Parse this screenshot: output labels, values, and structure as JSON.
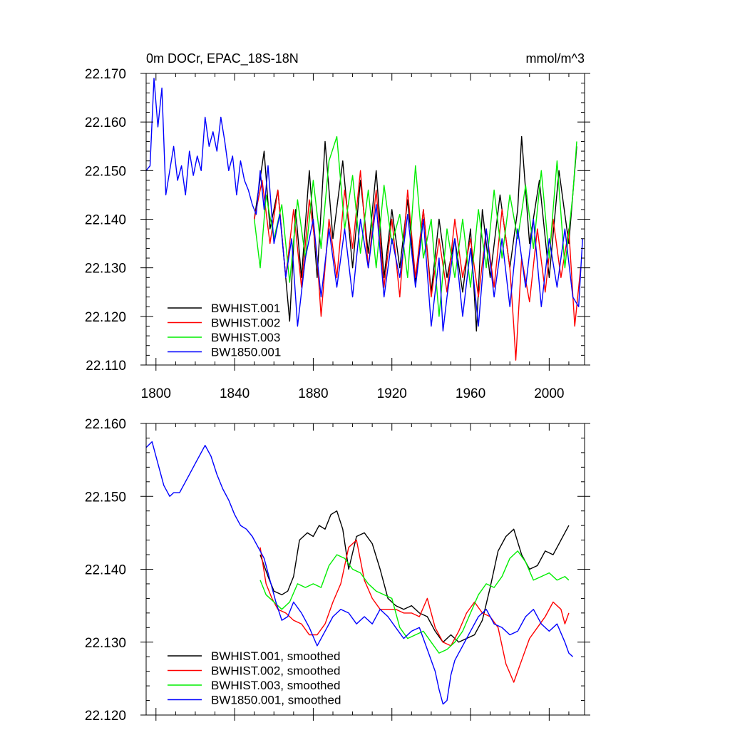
{
  "chart_data": [
    {
      "type": "line",
      "title_left": "0m DOCr, EPAC_18S-18N",
      "title_right": "mmol/m^3",
      "xlim": [
        1795,
        2018
      ],
      "ylim": [
        22.11,
        22.17
      ],
      "xticks": [
        1800,
        1840,
        1880,
        1920,
        1960,
        2000
      ],
      "xtick_labels": [
        "1800",
        "1840",
        "1880",
        "1920",
        "1960",
        "2000"
      ],
      "yticks": [
        22.11,
        22.12,
        22.13,
        22.14,
        22.15,
        22.16,
        22.17
      ],
      "ytick_labels": [
        "22.110",
        "22.120",
        "22.130",
        "22.140",
        "22.150",
        "22.160",
        "22.170"
      ],
      "legend_position": "bottom-left",
      "series": [
        {
          "name": "BWHIST.001",
          "color": "#000000",
          "x": [
            1850,
            1855,
            1858,
            1862,
            1866,
            1868,
            1871,
            1874,
            1878,
            1882,
            1886,
            1890,
            1895,
            1900,
            1904,
            1908,
            1912,
            1916,
            1920,
            1924,
            1928,
            1932,
            1936,
            1940,
            1944,
            1948,
            1952,
            1956,
            1960,
            1963,
            1966,
            1970,
            1975,
            1980,
            1984,
            1986,
            1990,
            1995,
            2000,
            2005,
            2010,
            2014
          ],
          "values": [
            22.14,
            22.154,
            22.138,
            22.146,
            22.128,
            22.119,
            22.142,
            22.128,
            22.15,
            22.128,
            22.156,
            22.136,
            22.152,
            22.13,
            22.148,
            22.133,
            22.15,
            22.128,
            22.142,
            22.13,
            22.144,
            22.127,
            22.142,
            22.125,
            22.14,
            22.128,
            22.136,
            22.125,
            22.138,
            22.117,
            22.142,
            22.128,
            22.145,
            22.13,
            22.142,
            22.157,
            22.135,
            22.148,
            22.128,
            22.15,
            22.135,
            22.155
          ]
        },
        {
          "name": "BWHIST.002",
          "color": "#ff0000",
          "x": [
            1850,
            1854,
            1858,
            1862,
            1866,
            1870,
            1874,
            1878,
            1882,
            1884,
            1888,
            1892,
            1896,
            1900,
            1904,
            1908,
            1912,
            1916,
            1920,
            1924,
            1928,
            1932,
            1936,
            1940,
            1944,
            1948,
            1952,
            1956,
            1960,
            1964,
            1968,
            1972,
            1976,
            1980,
            1982,
            1983,
            1986,
            1990,
            1994,
            1998,
            2002,
            2006,
            2010,
            2013,
            2016
          ],
          "values": [
            22.14,
            22.148,
            22.135,
            22.146,
            22.128,
            22.142,
            22.126,
            22.144,
            22.132,
            22.12,
            22.14,
            22.128,
            22.146,
            22.134,
            22.15,
            22.13,
            22.146,
            22.126,
            22.14,
            22.124,
            22.146,
            22.128,
            22.142,
            22.124,
            22.136,
            22.125,
            22.14,
            22.128,
            22.136,
            22.124,
            22.138,
            22.126,
            22.142,
            22.13,
            22.118,
            22.111,
            22.132,
            22.123,
            22.138,
            22.125,
            22.14,
            22.128,
            22.138,
            22.118,
            22.13
          ]
        },
        {
          "name": "BWHIST.003",
          "color": "#00ee00",
          "x": [
            1850,
            1853,
            1856,
            1860,
            1864,
            1868,
            1872,
            1876,
            1880,
            1884,
            1888,
            1892,
            1896,
            1900,
            1904,
            1908,
            1912,
            1916,
            1920,
            1924,
            1928,
            1932,
            1936,
            1940,
            1944,
            1948,
            1952,
            1956,
            1960,
            1964,
            1968,
            1972,
            1976,
            1980,
            1984,
            1988,
            1992,
            1996,
            2000,
            2004,
            2008,
            2012,
            2014
          ],
          "values": [
            22.14,
            22.13,
            22.145,
            22.136,
            22.143,
            22.127,
            22.144,
            22.132,
            22.148,
            22.134,
            22.152,
            22.157,
            22.138,
            22.149,
            22.133,
            22.146,
            22.13,
            22.147,
            22.135,
            22.141,
            22.128,
            22.151,
            22.132,
            22.14,
            22.12,
            22.138,
            22.128,
            22.14,
            22.126,
            22.142,
            22.13,
            22.146,
            22.132,
            22.145,
            22.136,
            22.147,
            22.134,
            22.15,
            22.132,
            22.152,
            22.13,
            22.145,
            22.156
          ]
        },
        {
          "name": "BW1850.001",
          "color": "#0000ff",
          "x": [
            1795,
            1797,
            1799,
            1801,
            1803,
            1805,
            1807,
            1809,
            1811,
            1813,
            1815,
            1817,
            1819,
            1821,
            1823,
            1825,
            1827,
            1829,
            1831,
            1833,
            1835,
            1837,
            1839,
            1841,
            1843,
            1845,
            1847,
            1849,
            1851,
            1853,
            1855,
            1857,
            1860,
            1863,
            1866,
            1869,
            1872,
            1876,
            1880,
            1884,
            1888,
            1892,
            1896,
            1900,
            1904,
            1908,
            1912,
            1916,
            1920,
            1924,
            1928,
            1932,
            1936,
            1940,
            1944,
            1946,
            1948,
            1952,
            1956,
            1960,
            1964,
            1968,
            1972,
            1976,
            1980,
            1984,
            1988,
            1992,
            1996,
            2000,
            2004,
            2008,
            2012,
            2015,
            2017
          ],
          "values": [
            22.15,
            22.151,
            22.169,
            22.159,
            22.167,
            22.145,
            22.15,
            22.155,
            22.148,
            22.151,
            22.145,
            22.154,
            22.149,
            22.153,
            22.15,
            22.161,
            22.155,
            22.158,
            22.154,
            22.161,
            22.156,
            22.15,
            22.153,
            22.145,
            22.152,
            22.148,
            22.146,
            22.143,
            22.141,
            22.15,
            22.142,
            22.151,
            22.135,
            22.141,
            22.128,
            22.136,
            22.118,
            22.132,
            22.14,
            22.124,
            22.138,
            22.126,
            22.138,
            22.124,
            22.14,
            22.13,
            22.143,
            22.124,
            22.136,
            22.128,
            22.141,
            22.126,
            22.14,
            22.118,
            22.132,
            22.117,
            22.124,
            22.136,
            22.12,
            22.134,
            22.118,
            22.138,
            22.124,
            22.136,
            22.122,
            22.138,
            22.126,
            22.14,
            22.122,
            22.136,
            22.126,
            22.138,
            22.124,
            22.122,
            22.136
          ]
        }
      ]
    },
    {
      "type": "line",
      "xlim": [
        1795,
        2018
      ],
      "ylim": [
        22.12,
        22.16
      ],
      "xticks": [
        1800,
        1840,
        1880,
        1920,
        1960,
        2000
      ],
      "yticks": [
        22.12,
        22.13,
        22.14,
        22.15,
        22.16
      ],
      "ytick_labels": [
        "22.120",
        "22.130",
        "22.140",
        "22.150",
        "22.160"
      ],
      "legend_position": "bottom-left",
      "series": [
        {
          "name": "BWHIST.001, smoothed",
          "color": "#000000",
          "x": [
            1853,
            1857,
            1860,
            1864,
            1867,
            1870,
            1873,
            1877,
            1880,
            1883,
            1886,
            1889,
            1892,
            1895,
            1898,
            1902,
            1906,
            1910,
            1914,
            1918,
            1922,
            1926,
            1930,
            1934,
            1938,
            1942,
            1946,
            1950,
            1954,
            1958,
            1962,
            1966,
            1970,
            1974,
            1978,
            1982,
            1986,
            1990,
            1994,
            1998,
            2002,
            2006,
            2010
          ],
          "values": [
            22.142,
            22.139,
            22.137,
            22.1365,
            22.137,
            22.139,
            22.144,
            22.145,
            22.1445,
            22.146,
            22.1455,
            22.1475,
            22.148,
            22.1455,
            22.14,
            22.1445,
            22.145,
            22.1435,
            22.14,
            22.136,
            22.135,
            22.1345,
            22.135,
            22.134,
            22.1335,
            22.1315,
            22.13,
            22.131,
            22.13,
            22.1305,
            22.131,
            22.133,
            22.1375,
            22.1425,
            22.1445,
            22.1455,
            22.142,
            22.14,
            22.1405,
            22.1425,
            22.142,
            22.144,
            22.146
          ]
        },
        {
          "name": "BWHIST.002, smoothed",
          "color": "#ff0000",
          "x": [
            1853,
            1856,
            1859,
            1862,
            1866,
            1870,
            1874,
            1878,
            1882,
            1886,
            1890,
            1894,
            1898,
            1902,
            1906,
            1910,
            1914,
            1918,
            1922,
            1926,
            1930,
            1934,
            1938,
            1942,
            1946,
            1950,
            1954,
            1958,
            1962,
            1966,
            1970,
            1974,
            1978,
            1982,
            1986,
            1990,
            1994,
            1998,
            2002,
            2006,
            2008,
            2010
          ],
          "values": [
            22.143,
            22.138,
            22.136,
            22.1345,
            22.134,
            22.133,
            22.1325,
            22.131,
            22.131,
            22.1325,
            22.1355,
            22.138,
            22.143,
            22.144,
            22.1385,
            22.136,
            22.1345,
            22.1345,
            22.1345,
            22.134,
            22.134,
            22.1335,
            22.136,
            22.132,
            22.13,
            22.1295,
            22.1315,
            22.134,
            22.1355,
            22.134,
            22.1335,
            22.132,
            22.127,
            22.1245,
            22.1275,
            22.1305,
            22.132,
            22.1335,
            22.1355,
            22.1345,
            22.1325,
            22.134
          ]
        },
        {
          "name": "BWHIST.003, smoothed",
          "color": "#00ee00",
          "x": [
            1853,
            1856,
            1860,
            1864,
            1868,
            1872,
            1876,
            1880,
            1884,
            1888,
            1892,
            1896,
            1900,
            1904,
            1908,
            1912,
            1916,
            1920,
            1924,
            1928,
            1932,
            1936,
            1940,
            1944,
            1948,
            1952,
            1956,
            1960,
            1964,
            1968,
            1972,
            1976,
            1980,
            1984,
            1988,
            1992,
            1996,
            2000,
            2004,
            2008,
            2010
          ],
          "values": [
            22.1385,
            22.1365,
            22.1355,
            22.1345,
            22.1355,
            22.138,
            22.1375,
            22.138,
            22.1375,
            22.1405,
            22.142,
            22.1415,
            22.14,
            22.1395,
            22.138,
            22.137,
            22.1365,
            22.136,
            22.132,
            22.1305,
            22.131,
            22.1315,
            22.13,
            22.1285,
            22.129,
            22.13,
            22.1315,
            22.134,
            22.1365,
            22.138,
            22.1375,
            22.139,
            22.1415,
            22.1425,
            22.141,
            22.1385,
            22.139,
            22.1395,
            22.1385,
            22.139,
            22.1385
          ]
        },
        {
          "name": "BW1850.001, smoothed",
          "color": "#0000ff",
          "x": [
            1795,
            1798,
            1801,
            1804,
            1807,
            1809,
            1812,
            1814,
            1817,
            1820,
            1823,
            1825,
            1828,
            1831,
            1834,
            1837,
            1840,
            1843,
            1846,
            1849,
            1852,
            1855,
            1858,
            1861,
            1864,
            1867,
            1870,
            1874,
            1878,
            1882,
            1886,
            1890,
            1894,
            1898,
            1902,
            1906,
            1910,
            1914,
            1918,
            1922,
            1926,
            1930,
            1934,
            1938,
            1942,
            1944,
            1946,
            1948,
            1950,
            1952,
            1954,
            1956,
            1960,
            1964,
            1968,
            1972,
            1976,
            1980,
            1984,
            1988,
            1992,
            1996,
            2000,
            2004,
            2008,
            2010,
            2012
          ],
          "values": [
            22.1567,
            22.1575,
            22.1545,
            22.1515,
            22.15,
            22.1505,
            22.1505,
            22.1515,
            22.153,
            22.1545,
            22.156,
            22.157,
            22.1555,
            22.153,
            22.151,
            22.1495,
            22.1475,
            22.146,
            22.1455,
            22.1445,
            22.143,
            22.1415,
            22.1385,
            22.1355,
            22.133,
            22.1335,
            22.1355,
            22.134,
            22.132,
            22.1295,
            22.1315,
            22.1335,
            22.1345,
            22.134,
            22.1325,
            22.1335,
            22.1325,
            22.1345,
            22.1335,
            22.132,
            22.1305,
            22.1315,
            22.132,
            22.129,
            22.126,
            22.1235,
            22.1215,
            22.122,
            22.1255,
            22.1275,
            22.1285,
            22.1295,
            22.1315,
            22.1335,
            22.1345,
            22.1325,
            22.132,
            22.131,
            22.1315,
            22.1335,
            22.1345,
            22.1325,
            22.1315,
            22.1325,
            22.13,
            22.1285,
            22.128
          ]
        }
      ]
    }
  ]
}
